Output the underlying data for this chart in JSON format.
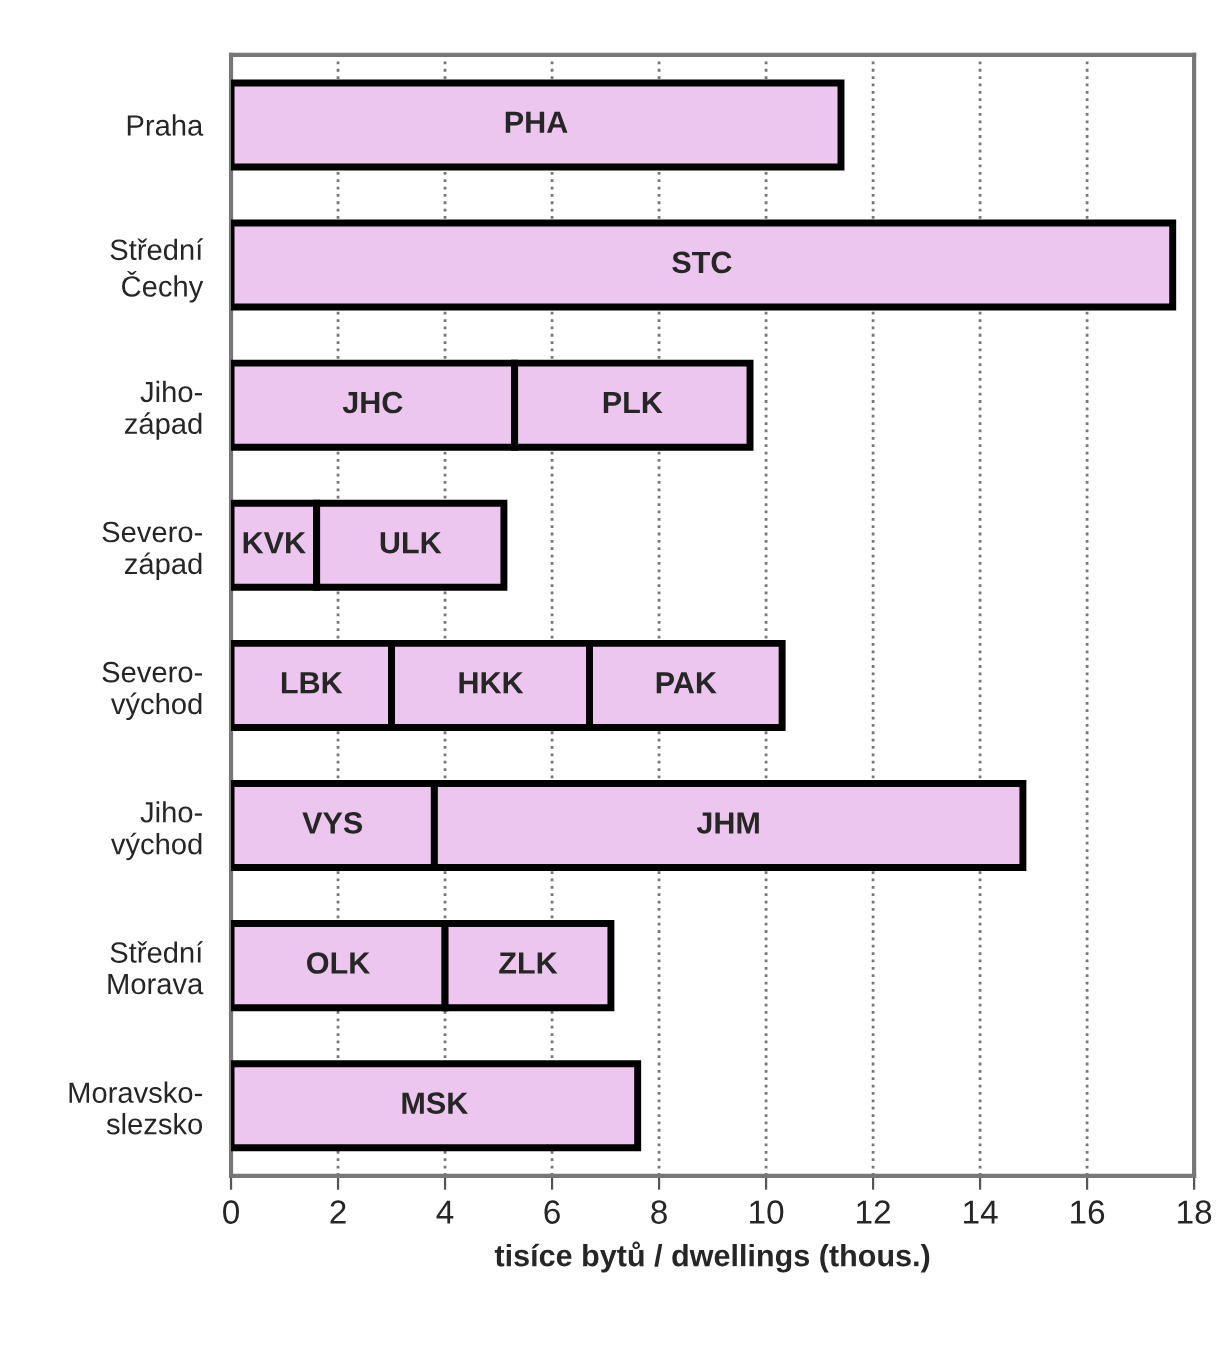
{
  "chart_data": {
    "type": "bar",
    "orientation": "horizontal",
    "stacked": true,
    "categories": [
      "Praha",
      "Střední\nČechy",
      "Jiho-\nzápad",
      "Severo-\nzápad",
      "Severo-\nvýchod",
      "Jiho-\nvýchod",
      "Střední\nMorava",
      "Moravsko-\nslezsko"
    ],
    "series": [
      {
        "color": "#ecc6ee",
        "values": [
          11.4,
          17.6,
          5.3,
          1.6,
          3.0,
          3.8,
          4.0,
          7.6
        ],
        "value_labels": [
          "PHA",
          "STC",
          "JHC",
          "KVK",
          "LBK",
          "VYS",
          "OLK",
          "MSK"
        ]
      },
      {
        "color": "#ecc6ee",
        "values": [
          null,
          null,
          4.4,
          3.5,
          3.7,
          11.0,
          3.1,
          null
        ],
        "value_labels": [
          null,
          null,
          "PLK",
          "ULK",
          "HKK",
          "JHM",
          "ZLK",
          null
        ]
      },
      {
        "color": "#ecc6ee",
        "values": [
          null,
          null,
          null,
          null,
          3.6,
          null,
          null,
          null
        ],
        "value_labels": [
          null,
          null,
          null,
          null,
          "PAK",
          null,
          null,
          null
        ]
      }
    ],
    "xlabel": "tisíce bytů / dwellings (thous.)",
    "xlim": [
      0,
      18
    ],
    "xticks": [
      0,
      2,
      4,
      6,
      8,
      10,
      12,
      14,
      16,
      18
    ],
    "grid": "x"
  }
}
